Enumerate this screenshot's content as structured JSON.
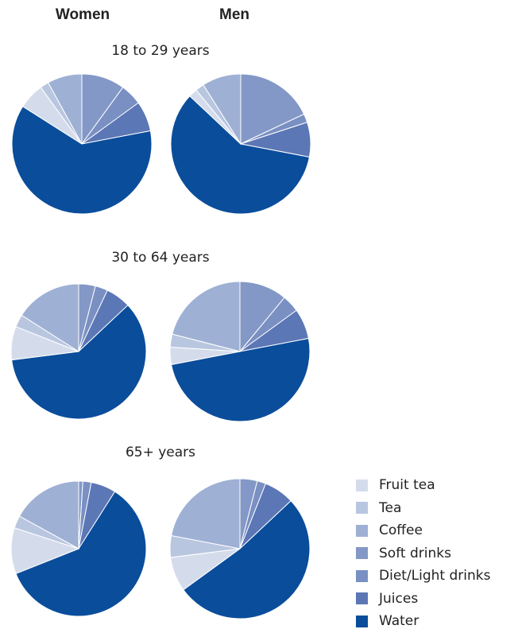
{
  "chart_data": {
    "type": "pie",
    "columns": [
      "Women",
      "Men"
    ],
    "categories": [
      "Fruit tea",
      "Tea",
      "Coffee",
      "Soft drinks",
      "Diet/Light drinks",
      "Juices",
      "Water"
    ],
    "colors": [
      "#d4dcec",
      "#b9c6e0",
      "#9eb0d4",
      "#8398c6",
      "#7a90c3",
      "#5c77b5",
      "#0a4d9b"
    ],
    "groups": [
      {
        "label": "18 to 29 years",
        "pies": [
          {
            "name": "Women",
            "values": [
              6,
              2,
              8,
              10,
              5,
              7,
              62
            ]
          },
          {
            "name": "Men",
            "values": [
              2,
              2,
              9,
              18,
              2,
              8,
              59
            ]
          }
        ]
      },
      {
        "label": "30 to 64 years",
        "pies": [
          {
            "name": "Women",
            "values": [
              8,
              3,
              16,
              4,
              3,
              6,
              60
            ]
          },
          {
            "name": "Men",
            "values": [
              4,
              3,
              21,
              11,
              4,
              7,
              50
            ]
          }
        ]
      },
      {
        "label": "65+ years",
        "pies": [
          {
            "name": "Women",
            "values": [
              11,
              3,
              17,
              1,
              2,
              6,
              60
            ]
          },
          {
            "name": "Men",
            "values": [
              8,
              5,
              22,
              4,
              2,
              7,
              52
            ]
          }
        ]
      }
    ]
  }
}
